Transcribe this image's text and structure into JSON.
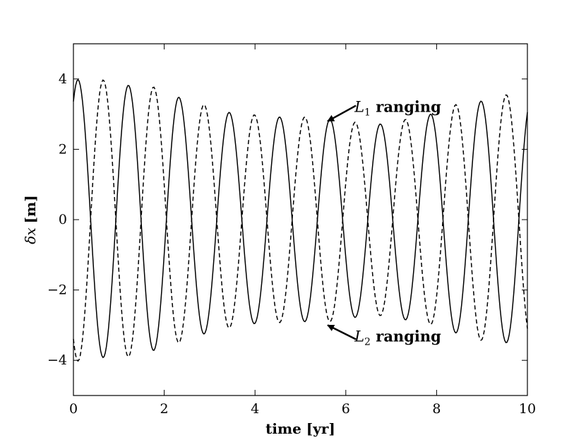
{
  "chart_data": {
    "type": "line",
    "xlabel": "time [yr]",
    "ylabel_prefix": "δx",
    "ylabel_unit": "[m]",
    "xlim": [
      0,
      10
    ],
    "ylim": [
      -5,
      5
    ],
    "xticks": [
      0,
      2,
      4,
      6,
      8,
      10
    ],
    "yticks": [
      -4,
      -2,
      0,
      2,
      4
    ],
    "xtick_labels": [
      "0",
      "2",
      "4",
      "6",
      "8",
      "10"
    ],
    "ytick_labels": [
      "−4",
      "−2",
      "0",
      "2",
      "4"
    ],
    "grid": false,
    "series": [
      {
        "style": "solid",
        "color": "#000000",
        "x": [
          0.1,
          0.655,
          1.21,
          1.765,
          2.32,
          2.875,
          3.43,
          3.985,
          4.54,
          5.095,
          5.65,
          6.205,
          6.76,
          7.315,
          7.87,
          8.425,
          8.98,
          9.535
        ],
        "y": [
          3.98,
          -3.92,
          3.82,
          -3.72,
          3.48,
          -3.25,
          3.05,
          -2.96,
          2.92,
          -2.9,
          2.85,
          -2.78,
          2.72,
          -2.85,
          3.0,
          -3.22,
          3.37,
          -3.5
        ]
      },
      {
        "style": "dashed",
        "color": "#000000",
        "x": [
          0.1,
          0.655,
          1.21,
          1.765,
          2.32,
          2.875,
          3.43,
          3.985,
          4.54,
          5.095,
          5.65,
          6.205,
          6.76,
          7.315,
          7.87,
          8.425,
          8.98,
          9.535
        ],
        "y": [
          -4.02,
          3.97,
          -3.9,
          3.77,
          -3.5,
          3.27,
          -3.08,
          2.98,
          -2.93,
          2.92,
          -2.9,
          2.77,
          -2.73,
          2.85,
          -2.98,
          3.27,
          -3.43,
          3.55
        ]
      }
    ],
    "annotations": [
      {
        "var": "L",
        "sub": "1",
        "text": " ranging",
        "point": [
          5.6,
          2.8
        ]
      },
      {
        "var": "L",
        "sub": "2",
        "text": " ranging",
        "point": [
          5.6,
          -3.0
        ]
      }
    ]
  }
}
